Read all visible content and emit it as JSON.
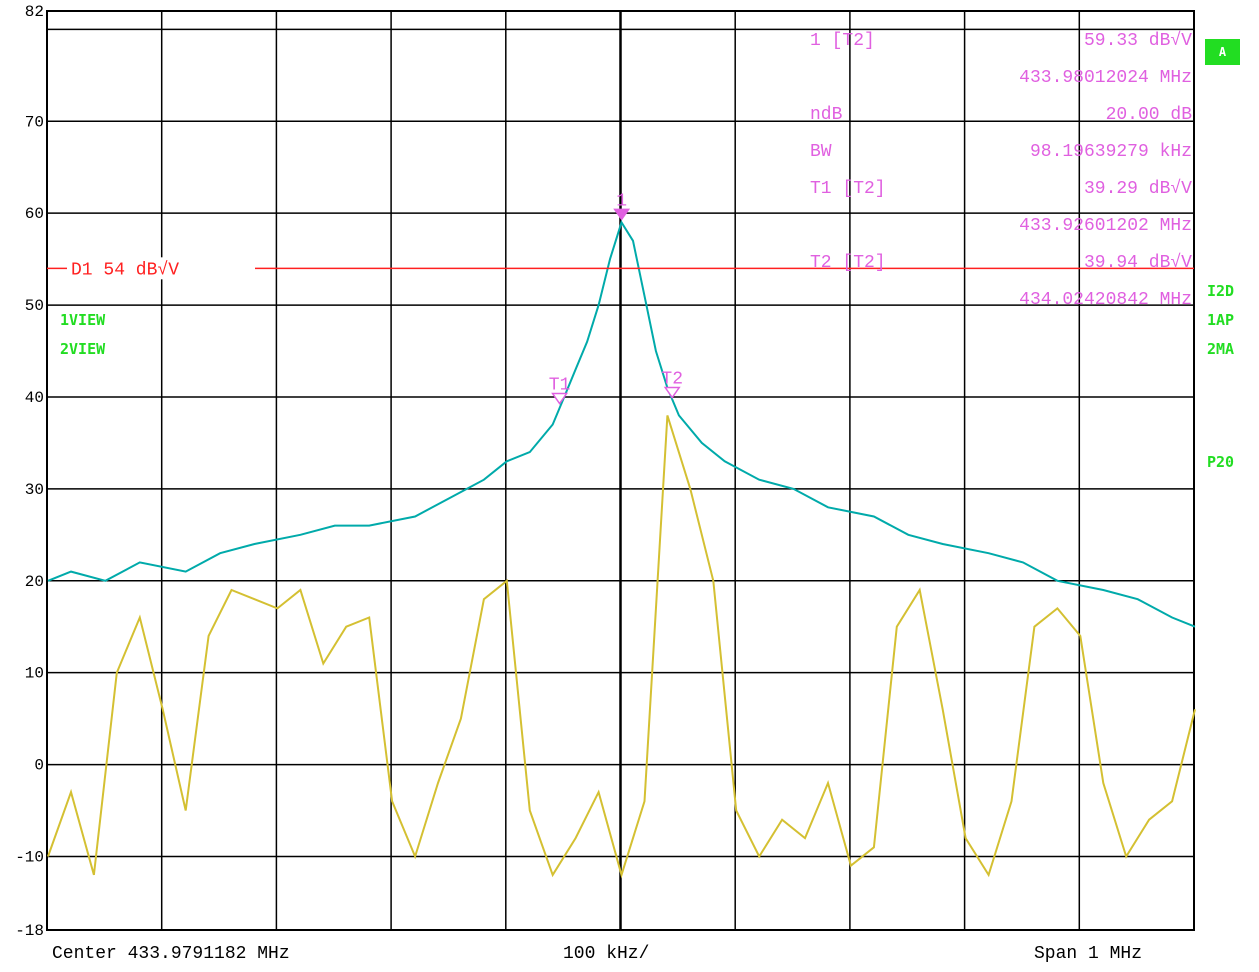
{
  "chart_data": {
    "type": "line",
    "ylim": [
      -18,
      82
    ],
    "y_ticks": [
      "82",
      "70",
      "60",
      "50",
      "40",
      "30",
      "20",
      "10",
      "0",
      "-10",
      "-18"
    ],
    "x_range_mhz": [
      433.4791182,
      434.4791182
    ],
    "grid": true,
    "series": [
      {
        "name": "1VIEW",
        "color": "#00aaaa",
        "x": [
          433.48,
          433.5,
          433.53,
          433.56,
          433.6,
          433.63,
          433.66,
          433.7,
          433.73,
          433.76,
          433.8,
          433.83,
          433.86,
          433.88,
          433.9,
          433.92,
          433.93,
          433.94,
          433.95,
          433.96,
          433.97,
          433.98,
          433.99,
          434.0,
          434.01,
          434.02,
          434.03,
          434.05,
          434.07,
          434.1,
          434.13,
          434.16,
          434.2,
          434.23,
          434.26,
          434.3,
          434.33,
          434.36,
          434.4,
          434.43,
          434.46,
          434.48
        ],
        "y": [
          20,
          21,
          20,
          22,
          21,
          23,
          24,
          25,
          26,
          26,
          27,
          29,
          31,
          33,
          34,
          37,
          40,
          43,
          46,
          50,
          55,
          59,
          57,
          51,
          45,
          41,
          38,
          35,
          33,
          31,
          30,
          28,
          27,
          25,
          24,
          23,
          22,
          20,
          19,
          18,
          16,
          15
        ]
      },
      {
        "name": "2VIEW",
        "color": "#d4c032",
        "x": [
          433.48,
          433.5,
          433.52,
          433.54,
          433.56,
          433.58,
          433.6,
          433.62,
          433.64,
          433.66,
          433.68,
          433.7,
          433.72,
          433.74,
          433.76,
          433.78,
          433.8,
          433.82,
          433.84,
          433.86,
          433.88,
          433.9,
          433.92,
          433.94,
          433.96,
          433.98,
          434.0,
          434.02,
          434.04,
          434.06,
          434.08,
          434.1,
          434.12,
          434.14,
          434.16,
          434.18,
          434.2,
          434.22,
          434.24,
          434.26,
          434.28,
          434.3,
          434.32,
          434.34,
          434.36,
          434.38,
          434.4,
          434.42,
          434.44,
          434.46,
          434.48
        ],
        "y": [
          -10,
          -3,
          -12,
          10,
          16,
          6,
          -5,
          14,
          19,
          18,
          17,
          19,
          11,
          15,
          16,
          -4,
          -10,
          -2,
          5,
          18,
          20,
          -5,
          -12,
          -8,
          -3,
          -12,
          -4,
          38,
          30,
          20,
          -5,
          -10,
          -6,
          -8,
          -2,
          -11,
          -9,
          15,
          19,
          6,
          -8,
          -12,
          -4,
          15,
          17,
          14,
          -2,
          -10,
          -6,
          -4,
          6
        ]
      }
    ],
    "markers": [
      {
        "label": "1",
        "x": 433.98012024,
        "y": 59.33
      },
      {
        "label": "T1",
        "x": 433.92601202,
        "y": 39.29
      },
      {
        "label": "T2",
        "x": 434.02420842,
        "y": 39.94
      }
    ],
    "display_line": {
      "value": 54,
      "label": "D1 54 dB√V"
    }
  },
  "marker_info": [
    {
      "text": "1 [T2]",
      "value": "59.33 dB√V"
    },
    {
      "text": "",
      "value": "433.98012024 MHz"
    },
    {
      "text": "ndB",
      "value": "20.00 dB"
    },
    {
      "text": "BW",
      "value": "98.19639279 kHz"
    },
    {
      "text": "T1 [T2]",
      "value": "39.29 dB√V"
    },
    {
      "text": "",
      "value": "433.92601202 MHz"
    },
    {
      "text": "T2 [T2]",
      "value": "39.94 dB√V"
    },
    {
      "text": "",
      "value": "434.02420842 MHz"
    }
  ],
  "trace_labels": [
    "1VIEW",
    "2VIEW"
  ],
  "side_labels": [
    "A",
    "I2D",
    "1AP",
    "2MA",
    "P20"
  ],
  "footer": {
    "center": "Center 433.9791182 MHz",
    "div": "100 kHz/",
    "span": "Span 1 MHz"
  },
  "colors": {
    "trace1": "#00aaaa",
    "trace2": "#d4c032",
    "marker": "#e060e0",
    "display_line": "#ff2020",
    "label_green": "#22dd22"
  }
}
